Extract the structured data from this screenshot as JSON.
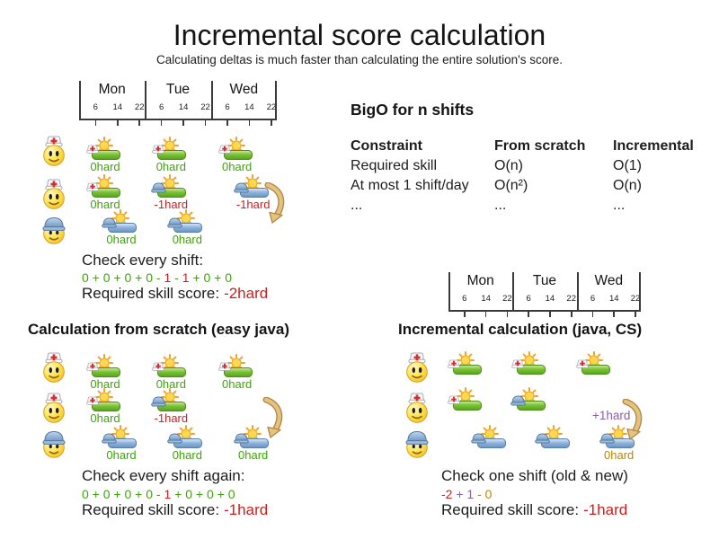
{
  "title": "Incremental score calculation",
  "subtitle": "Calculating deltas is much faster than calculating the entire solution's score.",
  "colors": {
    "green": "#3fa30c",
    "red": "#cc1f1f",
    "purple": "#8a5fa5",
    "gold": "#b8860b",
    "ink": "#1c1c1c"
  },
  "timeline": {
    "days": [
      "Mon",
      "Tue",
      "Wed"
    ],
    "hours": [
      "6",
      "14",
      "22"
    ]
  },
  "bigo": {
    "title": "BigO for n shifts",
    "columns": [
      "Constraint",
      "From scratch",
      "Incremental"
    ],
    "rows": [
      [
        "Required skill",
        "O(n)",
        "O(1)"
      ],
      [
        "At most 1 shift/day",
        "O(n²)",
        "O(n)"
      ],
      [
        "...",
        "...",
        "..."
      ]
    ]
  },
  "diagrams": [
    {
      "id": "initial",
      "heading": "",
      "rows": [
        {
          "face": "nurse",
          "shifts": [
            {
              "day": 0,
              "slot": "early",
              "kind": "green-nurse",
              "label": "0hard",
              "labelColor": "green"
            },
            {
              "day": 1,
              "slot": "early",
              "kind": "green-nurse",
              "label": "0hard",
              "labelColor": "green"
            },
            {
              "day": 2,
              "slot": "early",
              "kind": "green-nurse",
              "label": "0hard",
              "labelColor": "green"
            }
          ]
        },
        {
          "face": "nurse",
          "shifts": [
            {
              "day": 0,
              "slot": "early",
              "kind": "green-nurse",
              "label": "0hard",
              "labelColor": "green"
            },
            {
              "day": 1,
              "slot": "early",
              "kind": "green-builder",
              "label": "-1hard",
              "labelColor": "red"
            },
            {
              "day": 2,
              "slot": "late",
              "kind": "blue-builder",
              "label": "-1hard",
              "labelColor": "red"
            }
          ]
        },
        {
          "face": "builder",
          "shifts": [
            {
              "day": 0,
              "slot": "late",
              "kind": "blue-builder",
              "label": "0hard",
              "labelColor": "green"
            },
            {
              "day": 1,
              "slot": "late",
              "kind": "blue-builder",
              "label": "0hard",
              "labelColor": "green"
            }
          ]
        }
      ],
      "check_label": "Check every shift:",
      "formula": [
        {
          "text": "0 + 0 + 0 + 0 - ",
          "color": "green"
        },
        {
          "text": "1",
          "color": "red"
        },
        {
          "text": " - ",
          "color": "green"
        },
        {
          "text": "1",
          "color": "red"
        },
        {
          "text": " + 0 + 0",
          "color": "green"
        }
      ],
      "score_label": "Required skill score:",
      "score_value": "-2hard",
      "score_color": "red"
    },
    {
      "id": "from-scratch",
      "heading": "Calculation from scratch (easy java)",
      "rows": [
        {
          "face": "nurse",
          "shifts": [
            {
              "day": 0,
              "slot": "early",
              "kind": "green-nurse",
              "label": "0hard",
              "labelColor": "green"
            },
            {
              "day": 1,
              "slot": "early",
              "kind": "green-nurse",
              "label": "0hard",
              "labelColor": "green"
            },
            {
              "day": 2,
              "slot": "early",
              "kind": "green-nurse",
              "label": "0hard",
              "labelColor": "green"
            }
          ]
        },
        {
          "face": "nurse",
          "shifts": [
            {
              "day": 0,
              "slot": "early",
              "kind": "green-nurse",
              "label": "0hard",
              "labelColor": "green"
            },
            {
              "day": 1,
              "slot": "early",
              "kind": "green-builder",
              "label": "-1hard",
              "labelColor": "red"
            }
          ]
        },
        {
          "face": "builder",
          "shifts": [
            {
              "day": 0,
              "slot": "late",
              "kind": "blue-builder",
              "label": "0hard",
              "labelColor": "green"
            },
            {
              "day": 1,
              "slot": "late",
              "kind": "blue-builder",
              "label": "0hard",
              "labelColor": "green"
            },
            {
              "day": 2,
              "slot": "late",
              "kind": "blue-builder",
              "label": "0hard",
              "labelColor": "green"
            }
          ]
        }
      ],
      "check_label": "Check every shift again:",
      "formula": [
        {
          "text": "0 + 0 + 0 + 0 - ",
          "color": "green"
        },
        {
          "text": "1",
          "color": "red"
        },
        {
          "text": " + 0 + 0 + 0",
          "color": "green"
        }
      ],
      "score_label": "Required skill score:",
      "score_value": "-1hard",
      "score_color": "red"
    },
    {
      "id": "incremental",
      "heading": "Incremental calculation (java, CS)",
      "rows": [
        {
          "face": "nurse",
          "shifts": [
            {
              "day": 0,
              "slot": "early",
              "kind": "green-nurse",
              "label": null,
              "labelColor": null
            },
            {
              "day": 1,
              "slot": "early",
              "kind": "green-nurse",
              "label": null,
              "labelColor": null
            },
            {
              "day": 2,
              "slot": "early",
              "kind": "green-nurse",
              "label": null,
              "labelColor": null
            }
          ]
        },
        {
          "face": "nurse",
          "shifts": [
            {
              "day": 0,
              "slot": "early",
              "kind": "green-nurse",
              "label": null,
              "labelColor": null
            },
            {
              "day": 1,
              "slot": "early",
              "kind": "green-builder",
              "label": null,
              "labelColor": null
            }
          ]
        },
        {
          "face": "builder",
          "shifts": [
            {
              "day": 0,
              "slot": "late",
              "kind": "blue-builder",
              "label": null,
              "labelColor": null
            },
            {
              "day": 1,
              "slot": "late",
              "kind": "blue-builder",
              "label": null,
              "labelColor": null
            },
            {
              "day": 2,
              "slot": "late",
              "kind": "blue-builder",
              "label": "0hard",
              "labelColor": "gold"
            }
          ]
        }
      ],
      "delta_label": "+1hard",
      "delta_color": "purple",
      "check_label": "Check one shift (old & new)",
      "formula": [
        {
          "text": "-2",
          "color": "red"
        },
        {
          "text": " + 1",
          "color": "purple"
        },
        {
          "text": " - 0",
          "color": "gold"
        }
      ],
      "score_label": "Required skill score:",
      "score_value": "-1hard",
      "score_color": "red"
    }
  ]
}
